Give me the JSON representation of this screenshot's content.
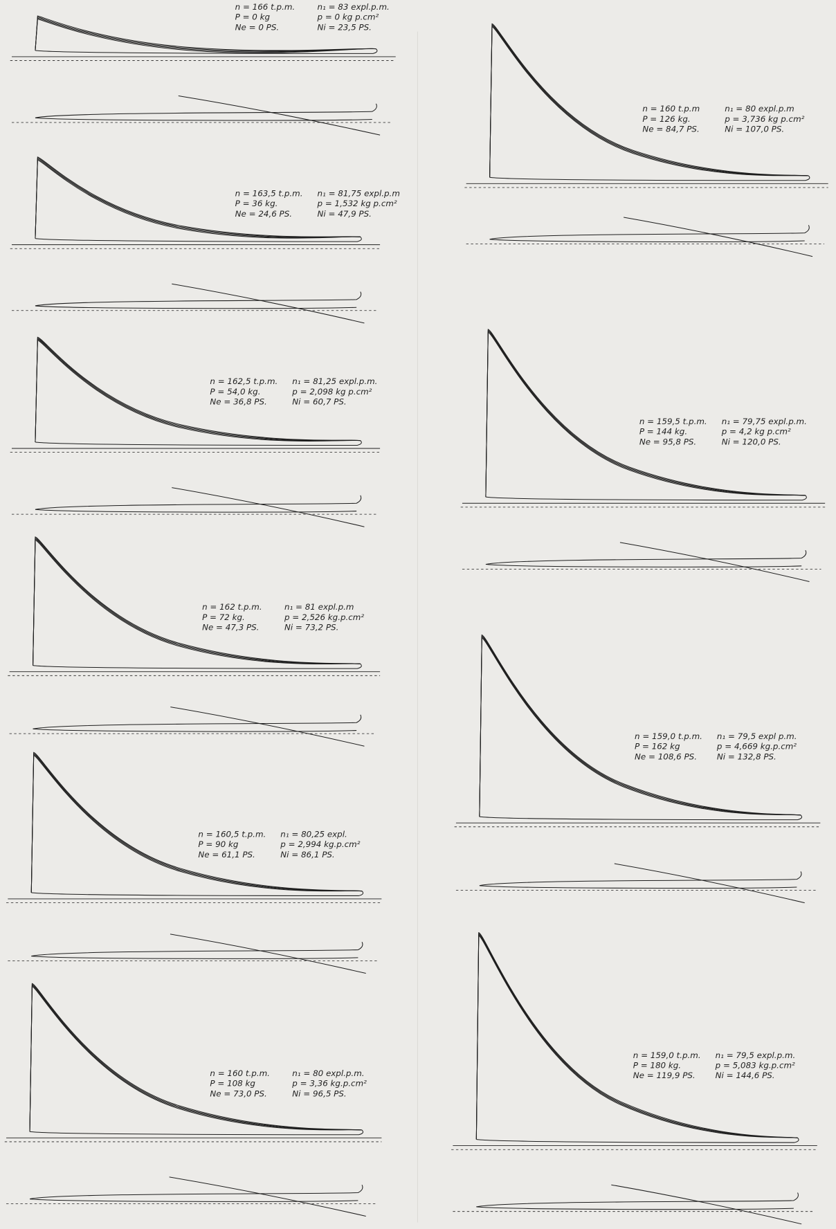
{
  "diagrams": [
    {
      "lines": [
        "n = 166 t.p.m.",
        "n₁ = 83 expl.p.m.",
        "P = 0 kg",
        "p = 0 kg p.cm²",
        "Ne = 0 PS.",
        "Ni = 23,5 PS."
      ]
    },
    {
      "lines": [
        "n = 163,5 t.p.m.",
        "n₁ = 81,75 expl.p.m",
        "P = 36 kg.",
        "p = 1,532 kg p.cm²",
        "Ne = 24,6 PS.",
        "Ni = 47,9 PS."
      ]
    },
    {
      "lines": [
        "n = 162,5 t.p.m.",
        "n₁ = 81,25 expl.p.m.",
        "P = 54,0 kg.",
        "p = 2,098 kg p.cm²",
        "Ne = 36,8 PS.",
        "Ni = 60,7 PS."
      ]
    },
    {
      "lines": [
        "n = 162 t.p.m.",
        "n₁ = 81 expl.p.m",
        "P = 72 kg.",
        "p = 2,526 kg.p.cm²",
        "Ne = 47,3 PS.",
        "Ni = 73,2 PS."
      ]
    },
    {
      "lines": [
        "n = 160,5 t.p.m.",
        "n₁ = 80,25 expl.",
        "P = 90 kg",
        "p = 2,994 kg.p.cm²",
        "Ne = 61,1 PS.",
        "Ni = 86,1 PS."
      ]
    },
    {
      "lines": [
        "n = 160 t.p.m.",
        "n₁ = 80 expl.p.m.",
        "P = 108 kg",
        "p = 3,36 kg.p.cm²",
        "Ne = 73,0 PS.",
        "Ni = 96,5 PS."
      ]
    },
    {
      "lines": [
        "n = 160 t.p.m",
        "n₁ = 80 expl.p.m",
        "P = 126 kg.",
        "p = 3,736 kg p.cm²",
        "Ne = 84,7 PS.",
        "Ni = 107,0 PS."
      ]
    },
    {
      "lines": [
        "n = 159,5 t.p.m.",
        "n₁ = 79,75 expl.p.m.",
        "P = 144 kg.",
        "p = 4,2 kg p.cm²",
        "Ne = 95,8 PS.",
        "Ni = 120,0 PS."
      ]
    },
    {
      "lines": [
        "n = 159,0 t.p.m.",
        "n₁ = 79,5 expl p.m.",
        "P = 162 kg",
        "p = 4,669 kg.p.cm²",
        "Ne = 108,6 PS.",
        "Ni = 132,8 PS."
      ]
    },
    {
      "lines": [
        "n = 159,0 t.p.m.",
        "n₁ = 79,5 expl.p.m.",
        "P = 180 kg.",
        "p = 5,083 kg.p.cm²",
        "Ne = 119,9 PS.",
        "Ni = 144,6 PS."
      ]
    }
  ]
}
